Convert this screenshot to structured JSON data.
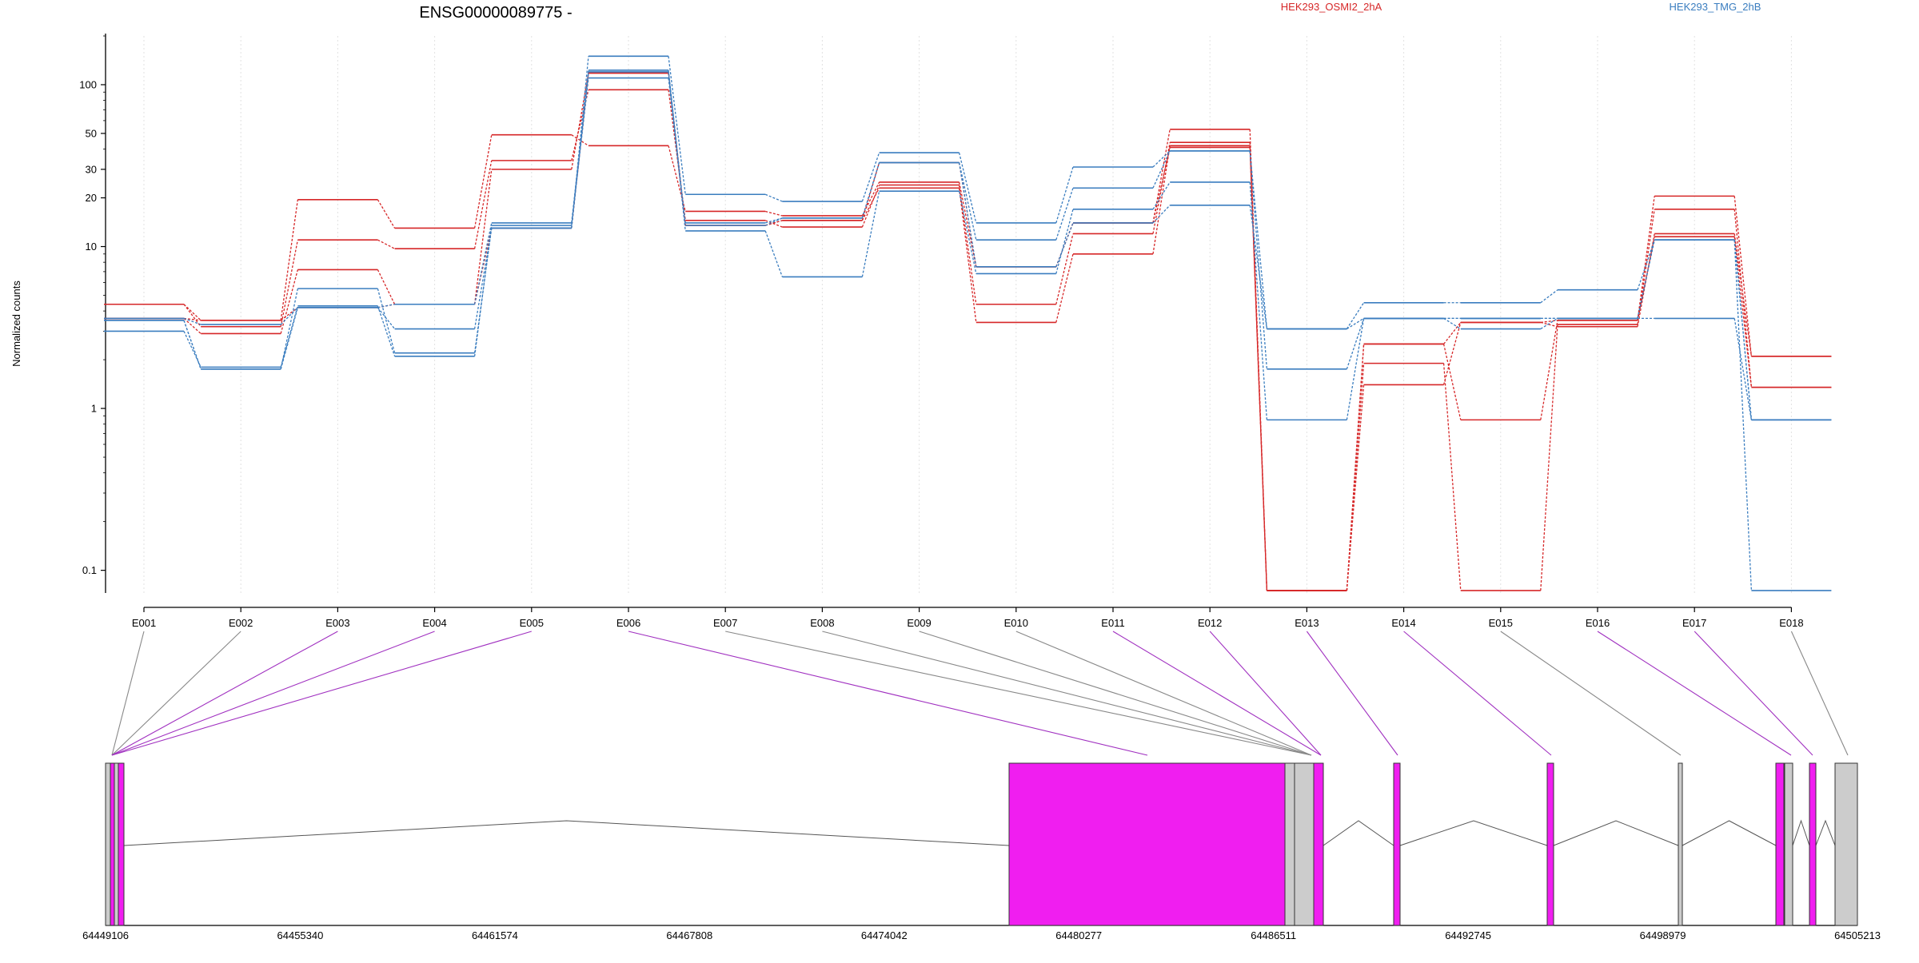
{
  "chart_data": {
    "type": "line",
    "title": "ENSG00000089775 -",
    "ylabel": "Normalized counts",
    "yscale": "log",
    "ylim": [
      0.07,
      200
    ],
    "yticks": [
      "0.1",
      "1",
      "10",
      "20",
      "30",
      "50",
      "100"
    ],
    "grid": true,
    "legend_position": "top",
    "legend": [
      {
        "name": "HEK293_OSMI2_2hA",
        "color": "#d62728"
      },
      {
        "name": "HEK293_TMG_2hB",
        "color": "#3a7dbf"
      }
    ],
    "categories": [
      "E001",
      "E002",
      "E003",
      "E004",
      "E005",
      "E006",
      "E007",
      "E008",
      "E009",
      "E010",
      "E011",
      "E012",
      "E013",
      "E014",
      "E015",
      "E016",
      "E017",
      "E018"
    ],
    "series": [
      {
        "group": "HEK293_OSMI2_2hA",
        "values": [
          4.4,
          3.5,
          19.5,
          13.0,
          49,
          42,
          16.5,
          15.5,
          25,
          7.5,
          14,
          53,
          0.075,
          2.5,
          0.85,
          3.5,
          20.5,
          2.1
        ]
      },
      {
        "group": "HEK293_OSMI2_2hA",
        "values": [
          4.4,
          3.2,
          11,
          9.7,
          34,
          93,
          14.5,
          13.2,
          24,
          4.4,
          12,
          44,
          0.075,
          1.9,
          0.075,
          3.3,
          17,
          1.35
        ]
      },
      {
        "group": "HEK293_OSMI2_2hA",
        "values": [
          3.6,
          2.9,
          7.2,
          4.4,
          30,
          118,
          13.5,
          14.5,
          23,
          3.4,
          9,
          42,
          0.075,
          1.4,
          3.4,
          3.2,
          12,
          2.1
        ]
      },
      {
        "group": "HEK293_OSMI2_2hA",
        "values": [
          3.6,
          3.5,
          4.2,
          4.4,
          13,
          118,
          13.5,
          14.5,
          33,
          7.5,
          14,
          41,
          0.075,
          2.5,
          3.4,
          3.5,
          11.5,
          1.35
        ]
      },
      {
        "group": "HEK293_TMG_2hB",
        "values": [
          3.5,
          1.75,
          4.2,
          3.1,
          13,
          150,
          21,
          19,
          38,
          14,
          31,
          39,
          3.1,
          4.5,
          4.5,
          5.4,
          11,
          0.85
        ]
      },
      {
        "group": "HEK293_TMG_2hB",
        "values": [
          3.5,
          1.75,
          5.5,
          2.2,
          13,
          123,
          13.5,
          15,
          33,
          11,
          23,
          39,
          1.75,
          3.6,
          3.1,
          3.6,
          11,
          0.075
        ]
      },
      {
        "group": "HEK293_TMG_2hB",
        "values": [
          3.6,
          3.3,
          4.2,
          4.4,
          14,
          120,
          12.5,
          6.5,
          22,
          6.8,
          17,
          25,
          0.85,
          3.6,
          3.6,
          3.6,
          3.6,
          0.85
        ]
      },
      {
        "group": "HEK293_TMG_2hB",
        "values": [
          3.0,
          1.8,
          4.3,
          2.1,
          13.5,
          110,
          14,
          15,
          33,
          7.5,
          14,
          18,
          3.1,
          3.6,
          3.6,
          3.6,
          11,
          0.85
        ]
      }
    ]
  },
  "gene_model": {
    "genomic_ticks": [
      "64449106",
      "64455340",
      "64461574",
      "64467808",
      "64474042",
      "64480277",
      "64486511",
      "64492745",
      "64498979",
      "64505213"
    ],
    "feature_links": [
      {
        "bin": "E001",
        "exon": 0,
        "counted": false
      },
      {
        "bin": "E002",
        "exon": 0,
        "counted": false
      },
      {
        "bin": "E003",
        "exon": 0,
        "counted": true
      },
      {
        "bin": "E004",
        "exon": 0,
        "counted": true
      },
      {
        "bin": "E005",
        "exon": 0,
        "counted": true
      },
      {
        "bin": "E006",
        "exon": 1,
        "counted": true
      },
      {
        "bin": "E007",
        "exon": 2,
        "counted": false
      },
      {
        "bin": "E008",
        "exon": 2,
        "counted": false
      },
      {
        "bin": "E009",
        "exon": 2,
        "counted": false
      },
      {
        "bin": "E010",
        "exon": 2,
        "counted": false
      },
      {
        "bin": "E011",
        "exon": 3,
        "counted": true
      },
      {
        "bin": "E012",
        "exon": 3,
        "counted": true
      },
      {
        "bin": "E013",
        "exon": 4,
        "counted": true
      },
      {
        "bin": "E014",
        "exon": 5,
        "counted": true
      },
      {
        "bin": "E015",
        "exon": 6,
        "counted": false
      },
      {
        "bin": "E016",
        "exon": 7,
        "counted": true
      },
      {
        "bin": "E017",
        "exon": 8,
        "counted": true
      },
      {
        "bin": "E018",
        "exon": 9,
        "counted": false
      }
    ],
    "colors": {
      "counted": "#f01ef0",
      "other": "#cccccc",
      "link_counted": "#a030c0",
      "link_other": "#888888"
    }
  }
}
